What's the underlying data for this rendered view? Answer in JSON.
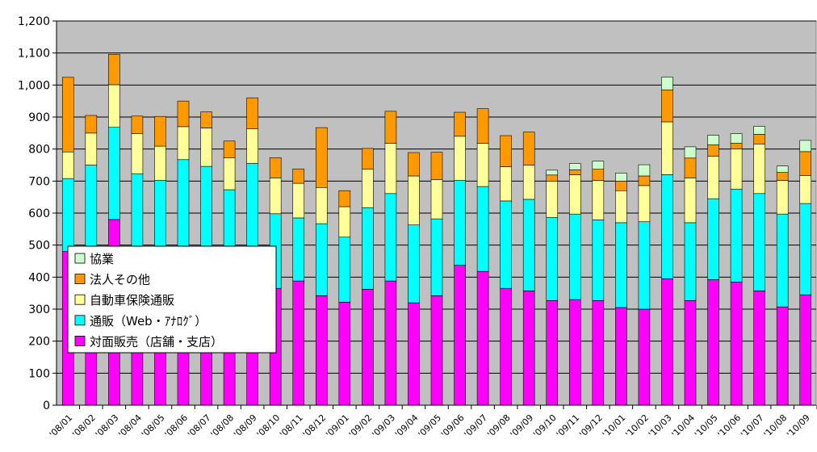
{
  "chart_data": {
    "type": "bar",
    "stacked": true,
    "title": "",
    "xlabel": "",
    "ylabel": "",
    "ylim": [
      0,
      1200
    ],
    "y_ticks": [
      "0",
      "100",
      "200",
      "300",
      "400",
      "500",
      "600",
      "700",
      "800",
      "900",
      "1,000",
      "1,100",
      "1,200"
    ],
    "grid": "horizontal",
    "legend_position": "left-middle",
    "plot_background": "#c0c0c0",
    "categories": [
      "'08/01",
      "'08/02",
      "'08/03",
      "'08/04",
      "'08/05",
      "'08/06",
      "'08/07",
      "'08/08",
      "'08/09",
      "'08/10",
      "'08/11",
      "'08/12",
      "'09/01",
      "'09/02",
      "'09/03",
      "'09/04",
      "'09/05",
      "'09/06",
      "'09/07",
      "'09/08",
      "'09/09",
      "'09/10",
      "'09/11",
      "'09/12",
      "'10/01",
      "'10/02",
      "'10/03",
      "'10/04",
      "'10/05",
      "'10/06",
      "'10/07",
      "'10/08",
      "'10/09"
    ],
    "series": [
      {
        "name": "対面販売（店舗・支店）",
        "color": "#ff00ff",
        "values": [
          480,
          480,
          580,
          480,
          480,
          495,
          480,
          480,
          480,
          365,
          388,
          342,
          322,
          362,
          388,
          320,
          342,
          437,
          418,
          365,
          357,
          327,
          330,
          327,
          305,
          300,
          395,
          327,
          392,
          385,
          357,
          307,
          345
        ]
      },
      {
        "name": "通販（Web・ｱﾅﾛｸﾞ）",
        "color": "#00ffff",
        "values": [
          228,
          270,
          288,
          243,
          222,
          272,
          266,
          193,
          275,
          233,
          197,
          225,
          203,
          255,
          273,
          243,
          240,
          265,
          265,
          273,
          286,
          259,
          267,
          252,
          265,
          273,
          325,
          243,
          253,
          290,
          304,
          290,
          285
        ]
      },
      {
        "name": "自動車保険通販",
        "color": "#ffff99",
        "values": [
          83,
          100,
          133,
          125,
          107,
          103,
          120,
          100,
          108,
          112,
          108,
          113,
          95,
          120,
          157,
          153,
          123,
          138,
          135,
          107,
          107,
          113,
          123,
          123,
          100,
          113,
          165,
          140,
          133,
          125,
          155,
          105,
          87
        ]
      },
      {
        "name": "法人その他",
        "color": "#ff9900",
        "values": [
          233,
          55,
          95,
          55,
          93,
          80,
          50,
          52,
          97,
          63,
          45,
          187,
          50,
          65,
          100,
          73,
          85,
          75,
          108,
          97,
          103,
          20,
          15,
          35,
          30,
          30,
          100,
          62,
          35,
          18,
          30,
          25,
          75
        ]
      },
      {
        "name": "協業",
        "color": "#ccffcc",
        "values": [
          0,
          0,
          0,
          0,
          0,
          0,
          0,
          0,
          0,
          0,
          0,
          0,
          0,
          0,
          0,
          0,
          0,
          0,
          0,
          0,
          0,
          15,
          20,
          25,
          25,
          35,
          40,
          35,
          30,
          30,
          25,
          20,
          35
        ]
      }
    ],
    "legend_order": [
      "協業",
      "法人その他",
      "自動車保険通販",
      "通販（Web・ｱﾅﾛｸﾞ）",
      "対面販売（店舗・支店）"
    ]
  }
}
